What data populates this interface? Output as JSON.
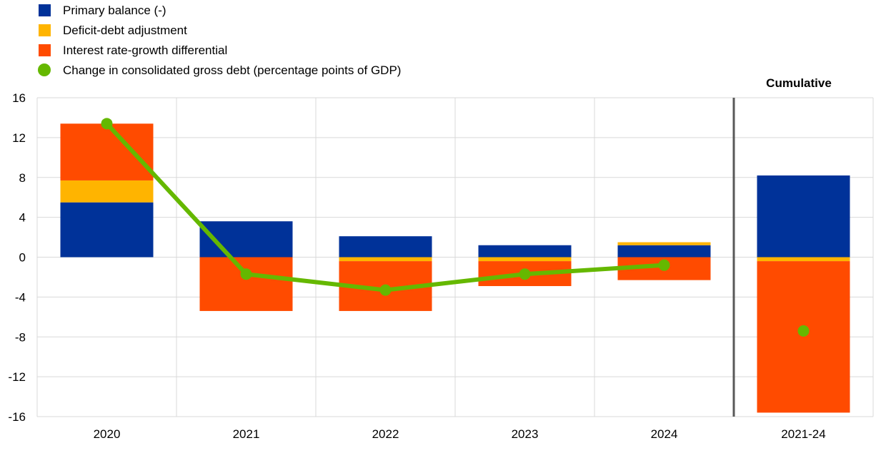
{
  "chart_data": {
    "type": "bar",
    "stacked": true,
    "title": "",
    "xlabel": "",
    "ylabel": "",
    "ylim": [
      -16,
      16
    ],
    "yticks": [
      16,
      12,
      8,
      4,
      0,
      -4,
      -8,
      -12,
      -16
    ],
    "grid": true,
    "legend_position": "top-left",
    "categories": [
      "2020",
      "2021",
      "2022",
      "2023",
      "2024",
      "2021-24"
    ],
    "annotation": "Cumulative",
    "series": [
      {
        "name": "Primary balance (-)",
        "type": "bar",
        "color": "#003299",
        "values": [
          5.5,
          3.6,
          2.1,
          1.2,
          1.2,
          8.2
        ]
      },
      {
        "name": "Deficit-debt adjustment",
        "type": "bar",
        "color": "#FFB400",
        "values": [
          2.2,
          0.0,
          -0.4,
          -0.4,
          0.3,
          -0.4
        ]
      },
      {
        "name": "Interest rate-growth differential",
        "type": "bar",
        "color": "#FF4B00",
        "values": [
          5.7,
          -5.4,
          -5.0,
          -2.5,
          -2.3,
          -15.2
        ]
      },
      {
        "name": "Change in consolidated gross debt (percentage points of GDP)",
        "type": "line",
        "color": "#65B800",
        "values": [
          13.4,
          -1.7,
          -3.3,
          -1.7,
          -0.8,
          -7.4
        ]
      }
    ]
  }
}
